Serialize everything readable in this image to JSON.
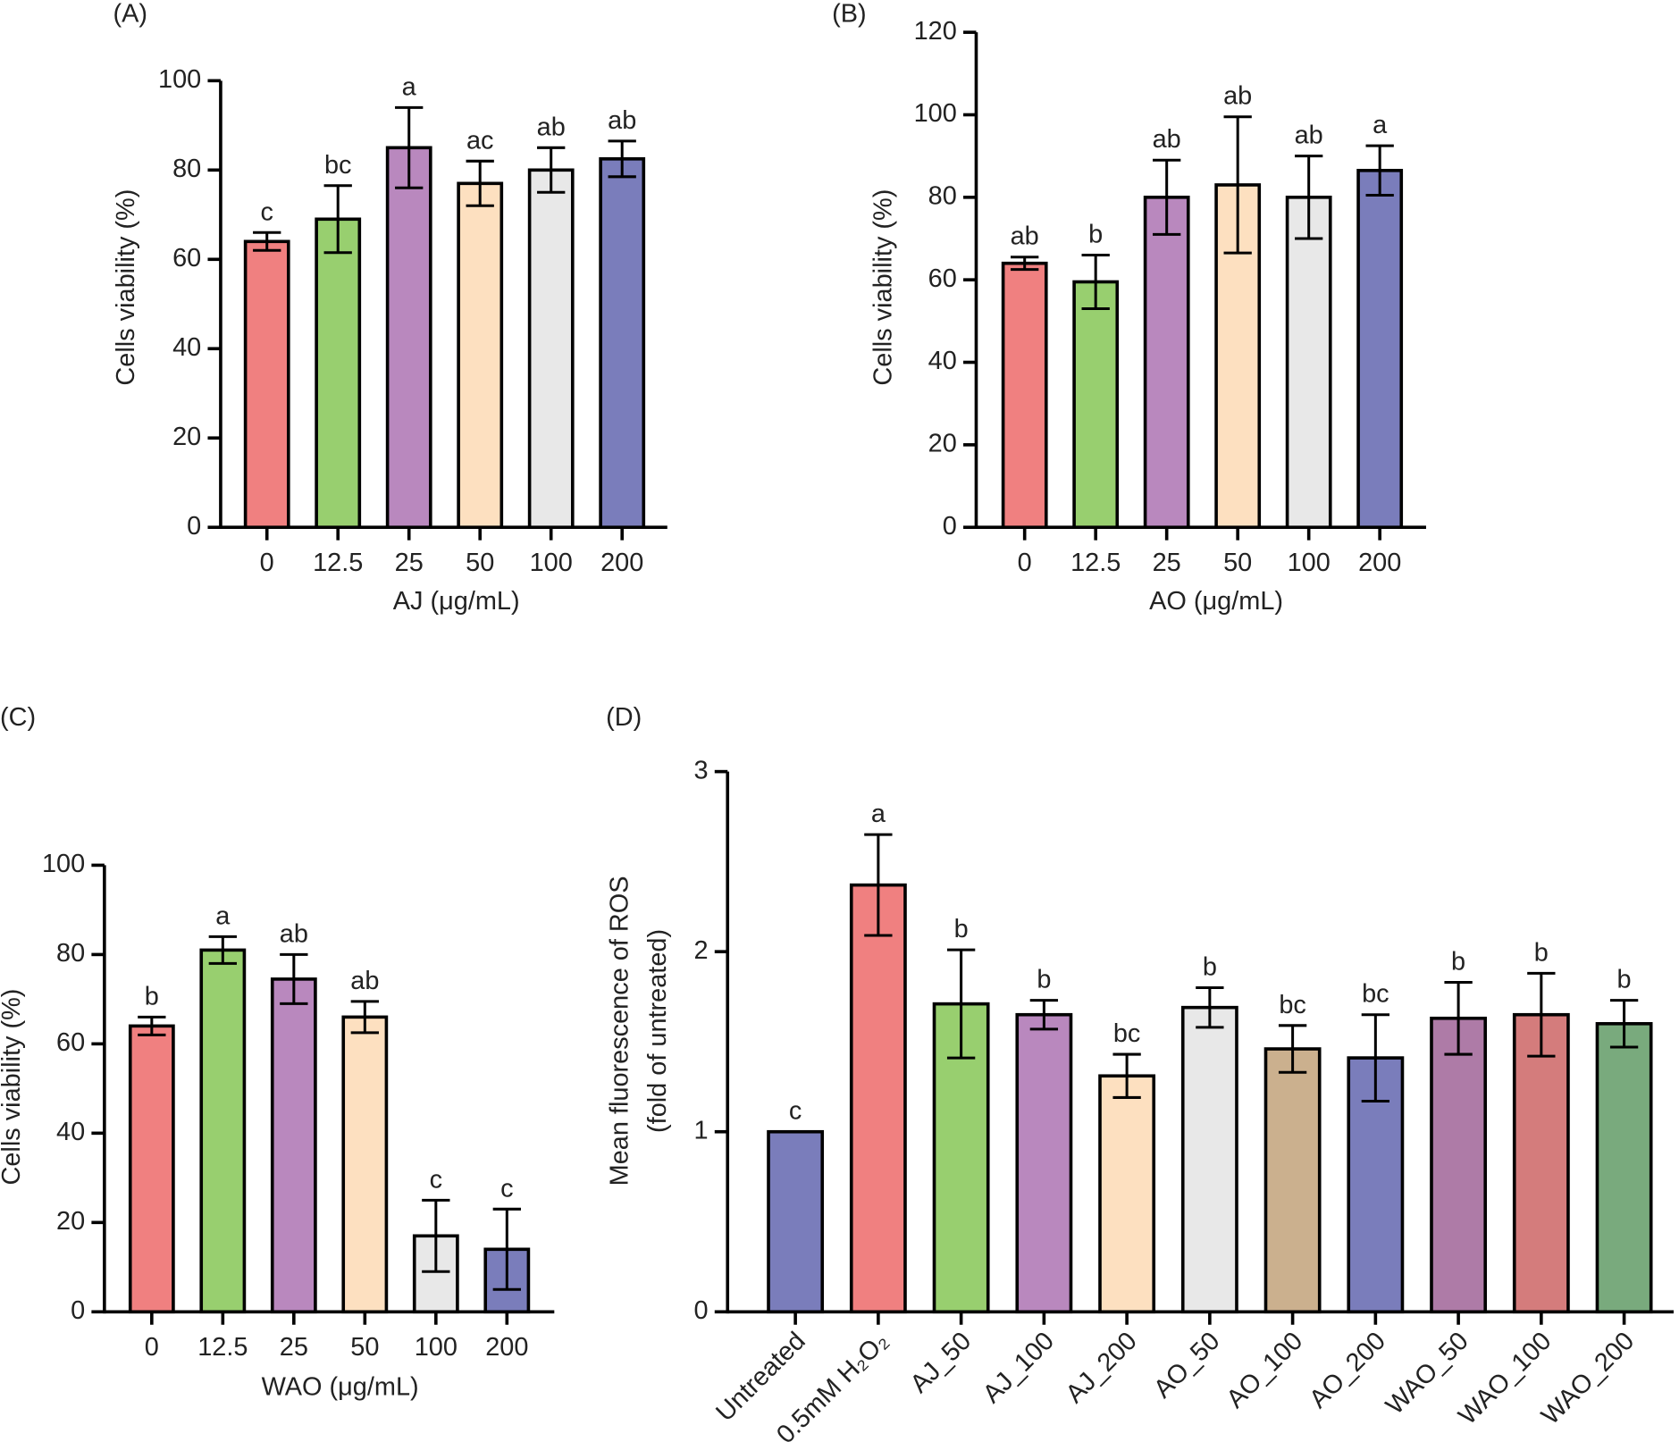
{
  "chart_data": [
    {
      "type": "bar",
      "panel_label": "(A)",
      "ylabel": [
        "Cells viability (%)"
      ],
      "xlabel": "AJ (μg/mL)",
      "categories": [
        "0",
        "12.5",
        "25",
        "50",
        "100",
        "200"
      ],
      "values": [
        64,
        69,
        85,
        77,
        80,
        82.5
      ],
      "errors": [
        2,
        7.5,
        9,
        5,
        5,
        4
      ],
      "letters": [
        "c",
        "bc",
        "a",
        "ac",
        "ab",
        "ab"
      ],
      "colors": [
        "#f08080",
        "#98cf6f",
        "#b988be",
        "#fde0c0",
        "#e8e8e8",
        "#7a7dbb"
      ],
      "ylim": [
        0,
        100
      ],
      "yticks": [
        0,
        20,
        40,
        60,
        80,
        100
      ]
    },
    {
      "type": "bar",
      "panel_label": "(B)",
      "ylabel": [
        "Cells viability (%)"
      ],
      "xlabel": "AO (μg/mL)",
      "categories": [
        "0",
        "12.5",
        "25",
        "50",
        "100",
        "200"
      ],
      "values": [
        64,
        59.5,
        80,
        83,
        80,
        86.5
      ],
      "errors": [
        1.5,
        6.5,
        9,
        16.5,
        10,
        6
      ],
      "letters": [
        "ab",
        "b",
        "ab",
        "ab",
        "ab",
        "a"
      ],
      "colors": [
        "#f08080",
        "#98cf6f",
        "#b988be",
        "#fde0c0",
        "#e8e8e8",
        "#7a7dbb"
      ],
      "ylim": [
        0,
        120
      ],
      "yticks": [
        0,
        20,
        40,
        60,
        80,
        100,
        120
      ]
    },
    {
      "type": "bar",
      "panel_label": "(C)",
      "ylabel": [
        "Cells viability (%)"
      ],
      "xlabel": "WAO (μg/mL)",
      "categories": [
        "0",
        "12.5",
        "25",
        "50",
        "100",
        "200"
      ],
      "values": [
        64,
        81,
        74.5,
        66,
        17,
        14
      ],
      "errors": [
        2,
        3,
        5.5,
        3.5,
        8,
        9
      ],
      "letters": [
        "b",
        "a",
        "ab",
        "ab",
        "c",
        "c"
      ],
      "colors": [
        "#f08080",
        "#98cf6f",
        "#b988be",
        "#fde0c0",
        "#e8e8e8",
        "#7a7dbb"
      ],
      "ylim": [
        0,
        100
      ],
      "yticks": [
        0,
        20,
        40,
        60,
        80,
        100
      ]
    },
    {
      "type": "bar",
      "panel_label": "(D)",
      "ylabel": [
        "Mean fluorescence of ROS",
        "(fold of untreated)"
      ],
      "categories": [
        "Untreated",
        "0.5mM H₂O₂",
        "AJ_50",
        "AJ_100",
        "AJ_200",
        "AO_50",
        "AO_100",
        "AO_200",
        "WAO_50",
        "WAO_100",
        "WAO_200"
      ],
      "values": [
        1.0,
        2.37,
        1.71,
        1.65,
        1.31,
        1.69,
        1.46,
        1.41,
        1.63,
        1.65,
        1.6
      ],
      "errors": [
        0,
        0.28,
        0.3,
        0.08,
        0.12,
        0.11,
        0.13,
        0.24,
        0.2,
        0.23,
        0.13
      ],
      "letters": [
        "c",
        "a",
        "b",
        "b",
        "bc",
        "b",
        "bc",
        "bc",
        "b",
        "b",
        "b"
      ],
      "colors": [
        "#7a7dbb",
        "#f08080",
        "#98cf6f",
        "#b988be",
        "#fde0c0",
        "#e8e8e8",
        "#cbb08e",
        "#7a7dbb",
        "#ae7ba7",
        "#d47c7c",
        "#79aa7d"
      ],
      "ylim": [
        0,
        3
      ],
      "yticks": [
        0,
        1,
        2,
        3
      ]
    }
  ]
}
